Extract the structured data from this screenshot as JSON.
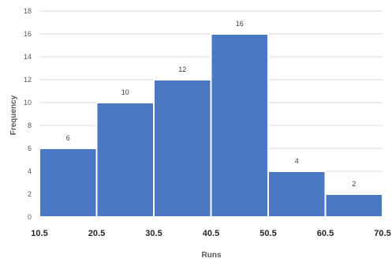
{
  "chart_data": {
    "type": "bar",
    "title": "",
    "xlabel": "Runs",
    "ylabel": "Frequency",
    "ylim": [
      0,
      18
    ],
    "yticks": [
      "0",
      "2",
      "4",
      "6",
      "8",
      "10",
      "12",
      "14",
      "16",
      "18"
    ],
    "xticks": [
      "10.5",
      "20.5",
      "30.5",
      "40.5",
      "50.5",
      "60.5",
      "70.5"
    ],
    "bins": [
      [
        10.5,
        20.5
      ],
      [
        20.5,
        30.5
      ],
      [
        30.5,
        40.5
      ],
      [
        40.5,
        50.5
      ],
      [
        50.5,
        60.5
      ],
      [
        60.5,
        70.5
      ]
    ],
    "values": [
      6,
      10,
      12,
      16,
      4,
      2
    ],
    "data_labels": [
      "6",
      "10",
      "12",
      "16",
      "4",
      "2"
    ],
    "grid": true,
    "colors": {
      "bar": "#4a78c2",
      "grid": "#d9d9d9"
    }
  }
}
